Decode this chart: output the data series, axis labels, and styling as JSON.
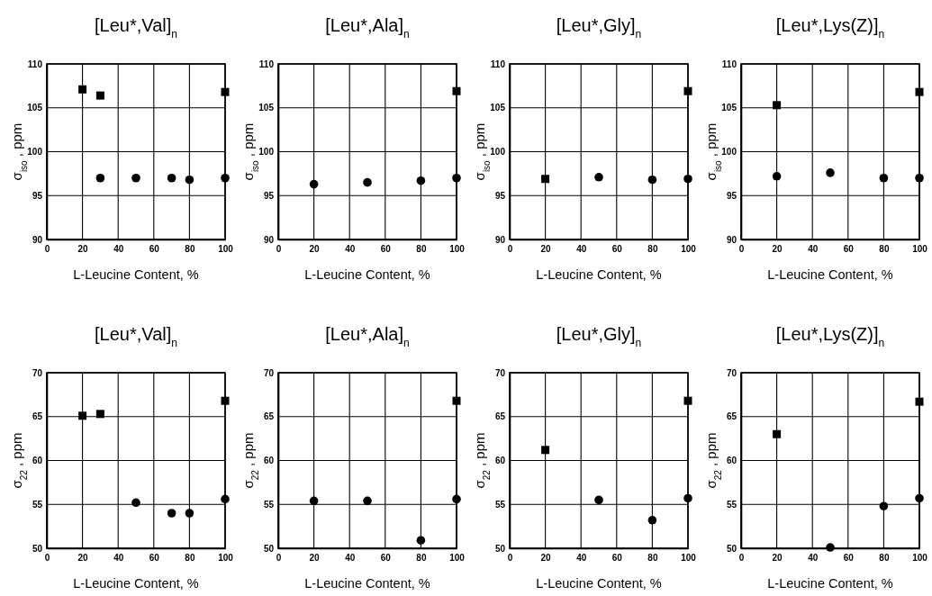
{
  "chart_data": [
    {
      "type": "scatter",
      "title": "[Leu*,Val]$_{n}$",
      "xlabel": "L-Leucine Content, %",
      "ylabel": "σ$_{iso}$ , ppm",
      "xlim": [
        0,
        100
      ],
      "xticks": [
        0,
        20,
        40,
        60,
        80,
        100
      ],
      "ylim": [
        90,
        110
      ],
      "yticks": [
        90,
        95,
        100,
        105,
        110
      ],
      "grid": true,
      "series": [
        {
          "type": "scatter",
          "marker": "square",
          "color": "#000000",
          "x": [
            20,
            30,
            100
          ],
          "values": [
            107.1,
            106.4,
            106.8
          ]
        },
        {
          "type": "scatter",
          "marker": "circle",
          "color": "#000000",
          "x": [
            30,
            50,
            70,
            80,
            100
          ],
          "values": [
            97.0,
            97.0,
            97.0,
            96.8,
            97.0
          ]
        }
      ]
    },
    {
      "type": "scatter",
      "title": "[Leu*,Ala]$_{n}$",
      "xlabel": "L-Leucine Content, %",
      "ylabel": "σ$_{iso}$ , ppm",
      "xlim": [
        0,
        100
      ],
      "xticks": [
        0,
        20,
        40,
        60,
        80,
        100
      ],
      "ylim": [
        90,
        110
      ],
      "yticks": [
        90,
        95,
        100,
        105,
        110
      ],
      "grid": true,
      "series": [
        {
          "type": "scatter",
          "marker": "square",
          "color": "#000000",
          "x": [
            100
          ],
          "values": [
            106.9
          ]
        },
        {
          "type": "scatter",
          "marker": "circle",
          "color": "#000000",
          "x": [
            20,
            50,
            80,
            100
          ],
          "values": [
            96.3,
            96.5,
            96.7,
            97.0
          ]
        }
      ]
    },
    {
      "type": "scatter",
      "title": "[Leu*,Gly]$_{n}$",
      "xlabel": "L-Leucine Content, %",
      "ylabel": "σ$_{iso}$ , ppm",
      "xlim": [
        0,
        100
      ],
      "xticks": [
        0,
        20,
        40,
        60,
        80,
        100
      ],
      "ylim": [
        90,
        110
      ],
      "yticks": [
        90,
        95,
        100,
        105,
        110
      ],
      "grid": true,
      "series": [
        {
          "type": "scatter",
          "marker": "square",
          "color": "#000000",
          "x": [
            20,
            100
          ],
          "values": [
            96.9,
            106.9
          ]
        },
        {
          "type": "scatter",
          "marker": "circle",
          "color": "#000000",
          "x": [
            50,
            80,
            100
          ],
          "values": [
            97.1,
            96.8,
            96.9
          ]
        }
      ]
    },
    {
      "type": "scatter",
      "title": "[Leu*,Lys(Z)]$_{n}$",
      "xlabel": "L-Leucine Content, %",
      "ylabel": "σ$_{iso}$ , ppm",
      "xlim": [
        0,
        100
      ],
      "xticks": [
        0,
        20,
        40,
        60,
        80,
        100
      ],
      "ylim": [
        90,
        110
      ],
      "yticks": [
        90,
        95,
        100,
        105,
        110
      ],
      "grid": true,
      "series": [
        {
          "type": "scatter",
          "marker": "square",
          "color": "#000000",
          "x": [
            20,
            100
          ],
          "values": [
            105.3,
            106.8
          ]
        },
        {
          "type": "scatter",
          "marker": "circle",
          "color": "#000000",
          "x": [
            20,
            50,
            80,
            100
          ],
          "values": [
            97.2,
            97.6,
            97.0,
            97.0
          ]
        }
      ]
    },
    {
      "type": "scatter",
      "title": "[Leu*,Val]$_{n}$",
      "xlabel": "L-Leucine Content, %",
      "ylabel": "σ$_{22}$ , ppm",
      "xlim": [
        0,
        100
      ],
      "xticks": [
        0,
        20,
        40,
        60,
        80,
        100
      ],
      "ylim": [
        50,
        70
      ],
      "yticks": [
        50,
        55,
        60,
        65,
        70
      ],
      "grid": true,
      "series": [
        {
          "type": "scatter",
          "marker": "square",
          "color": "#000000",
          "x": [
            20,
            30,
            100
          ],
          "values": [
            65.1,
            65.3,
            66.8
          ]
        },
        {
          "type": "scatter",
          "marker": "circle",
          "color": "#000000",
          "x": [
            50,
            70,
            80,
            100
          ],
          "values": [
            55.2,
            54.0,
            54.0,
            55.6
          ]
        }
      ]
    },
    {
      "type": "scatter",
      "title": "[Leu*,Ala]$_{n}$",
      "xlabel": "L-Leucine Content, %",
      "ylabel": "σ$_{22}$ , ppm",
      "xlim": [
        0,
        100
      ],
      "xticks": [
        0,
        20,
        40,
        60,
        80,
        100
      ],
      "ylim": [
        50,
        70
      ],
      "yticks": [
        50,
        55,
        60,
        65,
        70
      ],
      "grid": true,
      "series": [
        {
          "type": "scatter",
          "marker": "square",
          "color": "#000000",
          "x": [
            100
          ],
          "values": [
            66.8
          ]
        },
        {
          "type": "scatter",
          "marker": "circle",
          "color": "#000000",
          "x": [
            20,
            50,
            80,
            100
          ],
          "values": [
            55.4,
            55.4,
            50.9,
            55.6
          ]
        }
      ]
    },
    {
      "type": "scatter",
      "title": "[Leu*,Gly]$_{n}$",
      "xlabel": "L-Leucine Content, %",
      "ylabel": "σ$_{22}$ , ppm",
      "xlim": [
        0,
        100
      ],
      "xticks": [
        0,
        20,
        40,
        60,
        80,
        100
      ],
      "ylim": [
        50,
        70
      ],
      "yticks": [
        50,
        55,
        60,
        65,
        70
      ],
      "grid": true,
      "series": [
        {
          "type": "scatter",
          "marker": "square",
          "color": "#000000",
          "x": [
            20,
            100
          ],
          "values": [
            61.2,
            66.8
          ]
        },
        {
          "type": "scatter",
          "marker": "circle",
          "color": "#000000",
          "x": [
            50,
            80,
            100
          ],
          "values": [
            55.5,
            53.2,
            55.7
          ]
        }
      ]
    },
    {
      "type": "scatter",
      "title": "[Leu*,Lys(Z)]$_{n}$",
      "xlabel": "L-Leucine Content, %",
      "ylabel": "σ$_{22}$ , ppm",
      "xlim": [
        0,
        100
      ],
      "xticks": [
        0,
        20,
        40,
        60,
        80,
        100
      ],
      "ylim": [
        50,
        70
      ],
      "yticks": [
        50,
        55,
        60,
        65,
        70
      ],
      "grid": true,
      "series": [
        {
          "type": "scatter",
          "marker": "square",
          "color": "#000000",
          "x": [
            20,
            100
          ],
          "values": [
            63.0,
            66.7
          ]
        },
        {
          "type": "scatter",
          "marker": "circle",
          "color": "#000000",
          "x": [
            50,
            80,
            100
          ],
          "values": [
            50.1,
            54.8,
            55.7
          ]
        }
      ]
    }
  ]
}
